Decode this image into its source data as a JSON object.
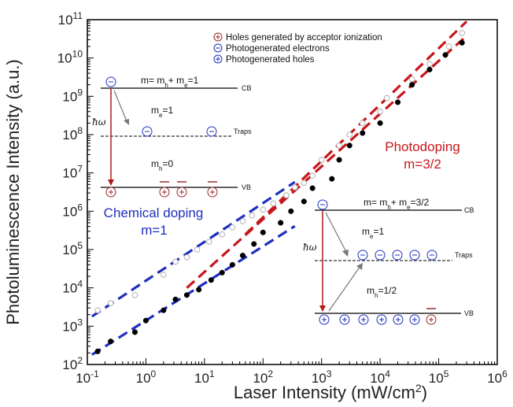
{
  "chart_data": {
    "type": "scatter",
    "xlabel": "Laser Intensity (mW/cm",
    "xlabel_sup": "2",
    "xlabel_end": ")",
    "ylabel": "Photoluminescence Intensity (a.u.)",
    "x_scale": "log",
    "y_scale": "log",
    "xlim": [
      0.1,
      1000000
    ],
    "ylim": [
      100,
      100000000000
    ],
    "x_ticks": [
      {
        "base": "10",
        "exp": "-1",
        "value": 0.1
      },
      {
        "base": "10",
        "exp": "0",
        "value": 1
      },
      {
        "base": "10",
        "exp": "1",
        "value": 10
      },
      {
        "base": "10",
        "exp": "2",
        "value": 100
      },
      {
        "base": "10",
        "exp": "3",
        "value": 1000
      },
      {
        "base": "10",
        "exp": "4",
        "value": 10000
      },
      {
        "base": "10",
        "exp": "5",
        "value": 100000
      },
      {
        "base": "10",
        "exp": "6",
        "value": 1000000
      }
    ],
    "y_ticks": [
      {
        "base": "10",
        "exp": "2",
        "value": 100
      },
      {
        "base": "10",
        "exp": "3",
        "value": 1000
      },
      {
        "base": "10",
        "exp": "4",
        "value": 10000
      },
      {
        "base": "10",
        "exp": "5",
        "value": 100000
      },
      {
        "base": "10",
        "exp": "6",
        "value": 1000000
      },
      {
        "base": "10",
        "exp": "7",
        "value": 10000000
      },
      {
        "base": "10",
        "exp": "8",
        "value": 100000000
      },
      {
        "base": "10",
        "exp": "9",
        "value": 1000000000
      },
      {
        "base": "10",
        "exp": "10",
        "value": 10000000000
      },
      {
        "base": "10",
        "exp": "11",
        "value": 100000000000
      }
    ],
    "series": [
      {
        "marker": "open-circle",
        "color": "#b0b0b0",
        "points": [
          [
            0.15,
            2600
          ],
          [
            0.25,
            4000
          ],
          [
            0.65,
            6500
          ],
          [
            2.0,
            22000
          ],
          [
            3.2,
            48000
          ],
          [
            5.0,
            63000
          ],
          [
            7.5,
            100000
          ],
          [
            12,
            160000
          ],
          [
            20,
            250000
          ],
          [
            30,
            380000
          ],
          [
            45,
            550000
          ],
          [
            65,
            780000
          ],
          [
            100,
            1100000
          ],
          [
            150,
            1600000
          ],
          [
            250,
            2600000
          ],
          [
            350,
            4200000
          ],
          [
            500,
            5500000
          ],
          [
            700,
            8500000
          ],
          [
            1000,
            22000000
          ],
          [
            2000,
            52000000
          ],
          [
            3000,
            100000000
          ],
          [
            5000,
            200000000
          ],
          [
            10000,
            400000000
          ],
          [
            13000,
            900000000
          ],
          [
            35000,
            2800000000
          ],
          [
            70000,
            7000000000
          ],
          [
            150000,
            20000000000
          ],
          [
            250000,
            45000000000
          ]
        ]
      },
      {
        "marker": "filled-circle",
        "color": "#000000",
        "points": [
          [
            0.15,
            220
          ],
          [
            0.25,
            400
          ],
          [
            0.65,
            700
          ],
          [
            1.0,
            1400
          ],
          [
            2.0,
            2600
          ],
          [
            3.2,
            5000
          ],
          [
            5.0,
            6500
          ],
          [
            8.0,
            9000
          ],
          [
            13,
            16000
          ],
          [
            20,
            25000
          ],
          [
            30,
            40000
          ],
          [
            45,
            70000
          ],
          [
            70,
            140000
          ],
          [
            100,
            280000
          ],
          [
            200,
            500000
          ],
          [
            300,
            1000000
          ],
          [
            500,
            1800000
          ],
          [
            700,
            4000000
          ],
          [
            1500,
            7000000
          ],
          [
            2000,
            22000000
          ],
          [
            3000,
            52000000
          ],
          [
            5000,
            110000000
          ],
          [
            10000,
            200000000
          ],
          [
            20000,
            700000000
          ],
          [
            35000,
            2000000000
          ],
          [
            70000,
            5000000000
          ],
          [
            130000,
            12000000000
          ],
          [
            250000,
            25000000000
          ]
        ]
      }
    ],
    "fit_lines": [
      {
        "color": "#1f2fbf",
        "slope_label": "m=1",
        "from": [
          0.12,
          1800
        ],
        "to": [
          350,
          5800000
        ]
      },
      {
        "color": "#1f2fbf",
        "slope_label": "m=1",
        "from": [
          0.12,
          180
        ],
        "to": [
          350,
          410000
        ]
      },
      {
        "color": "#c8171c",
        "slope_label": "m=3/2",
        "from": [
          50,
          250000
        ],
        "to": [
          300000,
          90000000000
        ]
      },
      {
        "color": "#c8171c",
        "slope_label": "m=3/2",
        "from": [
          5,
          10000
        ],
        "to": [
          300000,
          38000000000
        ]
      }
    ],
    "annotations": {
      "chem_1": "Chemical  doping",
      "chem_2": "m=1",
      "photo_1": "Photodoping",
      "photo_2": "m=3/2"
    },
    "legend": {
      "placement": "top",
      "items": [
        {
          "symbol": "+",
          "color": "#9b2a2a",
          "label": "Holes generated by acceptor ionization"
        },
        {
          "symbol": "−",
          "color": "#1f2fbf",
          "label": "Photogenerated electrons"
        },
        {
          "symbol": "+",
          "color": "#1f2fbf",
          "label": "Photogenerated holes"
        }
      ]
    },
    "inset_left": {
      "m_eq": "m= m",
      "m_eq_h": "h",
      "m_eq_mid": "+ m",
      "m_eq_e": "e",
      "m_eq_end": "=1",
      "me": "m",
      "me_sub": "e",
      "me_val": "=1",
      "mh": "m",
      "mh_sub": "h",
      "mh_val": "=0",
      "cb": "CB",
      "vb": "VB",
      "traps": "Traps",
      "hw": "ħω"
    },
    "inset_right": {
      "m_eq": "m= m",
      "m_eq_h": "h",
      "m_eq_mid": "+ m",
      "m_eq_e": "e",
      "m_eq_end": "=3/2",
      "me": "m",
      "me_sub": "e",
      "me_val": "=1",
      "mh": "m",
      "mh_sub": "h",
      "mh_val": "=1/2",
      "cb": "CB",
      "vb": "VB",
      "traps": "Traps",
      "hw": "ħω"
    }
  }
}
